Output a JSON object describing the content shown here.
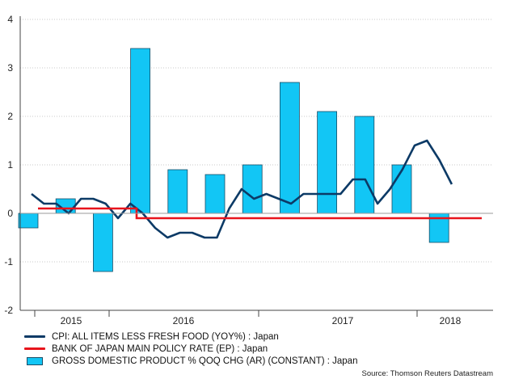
{
  "chart_data": {
    "type": "bar+line",
    "ylim": [
      -2,
      4
    ],
    "y_ticks": [
      "4",
      "3",
      "2",
      "1",
      "0",
      "-1",
      "-2"
    ],
    "x_tick_labels": [
      "2015",
      "2016",
      "2017",
      "2018"
    ],
    "series": [
      {
        "name": "GROSS DOMESTIC PRODUCT % QOQ CHG (AR) (CONSTANT) : Japan",
        "kind": "bar",
        "color": "#12c6f5",
        "values": [
          -0.3,
          0.3,
          -1.2,
          3.4,
          0.9,
          0.8,
          1.0,
          2.7,
          2.1,
          2.0,
          1.0,
          -0.6
        ]
      },
      {
        "name": "CPI: ALL ITEMS LESS FRESH FOOD (YOY%) : Japan",
        "kind": "line",
        "color": "#0c3a66",
        "values": [
          0.4,
          0.2,
          0.2,
          0.0,
          0.3,
          0.3,
          0.2,
          -0.1,
          0.2,
          0.0,
          -0.3,
          -0.5,
          -0.4,
          -0.4,
          -0.5,
          -0.5,
          0.1,
          0.5,
          0.3,
          0.4,
          0.3,
          0.2,
          0.4,
          0.4,
          0.4,
          0.4,
          0.7,
          0.7,
          0.2,
          0.5,
          0.9,
          1.4,
          1.5,
          1.1,
          0.6
        ]
      },
      {
        "name": "BANK OF JAPAN MAIN POLICY RATE (EP) : Japan",
        "kind": "step",
        "color": "#e8141c",
        "values": [
          0.1,
          0.1,
          0.1,
          0.1,
          0.1,
          0.1,
          0.1,
          0.1,
          -0.1,
          -0.1,
          -0.1,
          -0.1,
          -0.1,
          -0.1,
          -0.1,
          -0.1,
          -0.1,
          -0.1,
          -0.1,
          -0.1,
          -0.1,
          -0.1,
          -0.1,
          -0.1,
          -0.1,
          -0.1,
          -0.1,
          -0.1,
          -0.1,
          -0.1,
          -0.1,
          -0.1,
          -0.1,
          -0.1,
          -0.1,
          -0.1,
          -0.1
        ]
      }
    ],
    "legend_position": "bottom-left",
    "source": "Source: Thomson Reuters Datastream"
  }
}
